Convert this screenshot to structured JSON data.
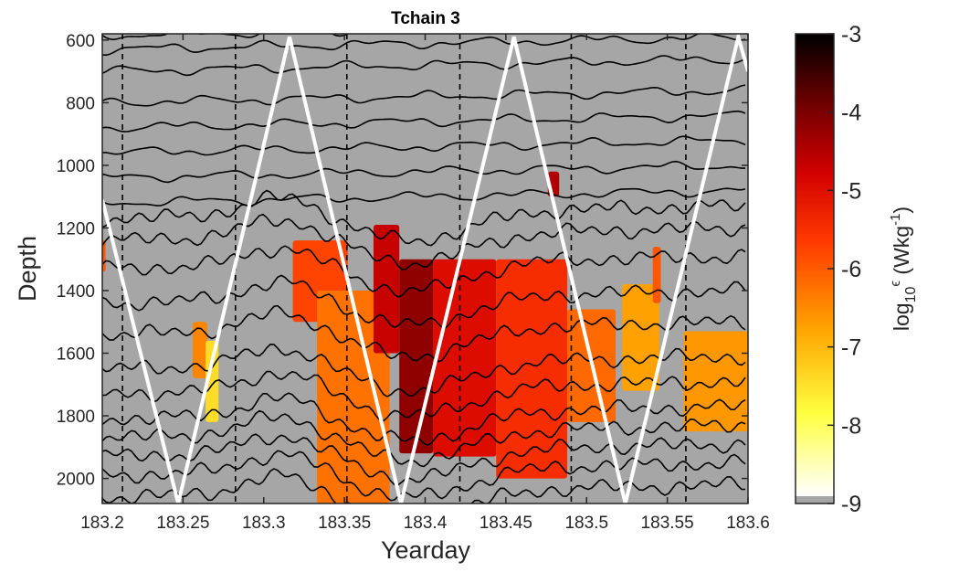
{
  "chart_data": {
    "type": "heatmap",
    "title": "Tchain 3",
    "xlabel": "Yearday",
    "ylabel": "Depth",
    "xlim": [
      183.2,
      183.6
    ],
    "ylim": [
      2080,
      580
    ],
    "y_reversed": true,
    "x_ticks": [
      "183.2",
      "183.25",
      "183.3",
      "183.35",
      "183.4",
      "183.45",
      "183.5",
      "183.55",
      "183.6"
    ],
    "y_ticks": [
      "600",
      "800",
      "1000",
      "1200",
      "1400",
      "1600",
      "1800",
      "2000"
    ],
    "colorbar": {
      "label_base": "log",
      "label_sub": "10",
      "label_sup_eps": "ϵ",
      "label_units": " (Wkg",
      "label_units_sup": "-1",
      "label_close": ")",
      "range": [
        -9,
        -3
      ],
      "ticks": [
        "-3",
        "-4",
        "-5",
        "-6",
        "-7",
        "-8",
        "-9"
      ],
      "colormap": "hot (reversed)"
    },
    "background_color": "#a6a6a6",
    "dashed_vertical_lines_x": [
      183.2125,
      183.2825,
      183.3515,
      183.4215,
      183.4905,
      183.5615
    ],
    "profiler_track": {
      "color": "#ffffff",
      "x": [
        183.2,
        183.247,
        183.316,
        183.385,
        183.455,
        183.524,
        183.594,
        183.6
      ],
      "depth": [
        1110,
        2080,
        590,
        2080,
        590,
        2080,
        590,
        700
      ]
    },
    "isotherm_base_depths": [
      585,
      630,
      700,
      800,
      880,
      960,
      1040,
      1120,
      1170,
      1240,
      1330,
      1440,
      1540,
      1650,
      1730,
      1810,
      1870,
      1930,
      1990,
      2060
    ],
    "dissipation_patches": [
      {
        "x": [
          183.2,
          183.202
        ],
        "depth": [
          1240,
          1340
        ],
        "log_eps": -6.0
      },
      {
        "x": [
          183.256,
          183.265
        ],
        "depth": [
          1500,
          1680
        ],
        "log_eps": -6.5
      },
      {
        "x": [
          183.264,
          183.272
        ],
        "depth": [
          1560,
          1820
        ],
        "log_eps": -7.5
      },
      {
        "x": [
          183.318,
          183.352
        ],
        "depth": [
          1240,
          1500
        ],
        "log_eps": -5.8
      },
      {
        "x": [
          183.333,
          183.378
        ],
        "depth": [
          1400,
          2080
        ],
        "log_eps": -6.3
      },
      {
        "x": [
          183.368,
          183.384
        ],
        "depth": [
          1190,
          1600
        ],
        "log_eps": -4.7
      },
      {
        "x": [
          183.384,
          183.405
        ],
        "depth": [
          1300,
          1920
        ],
        "log_eps": -4.2
      },
      {
        "x": [
          183.405,
          183.444
        ],
        "depth": [
          1300,
          1930
        ],
        "log_eps": -5.0
      },
      {
        "x": [
          183.444,
          183.488
        ],
        "depth": [
          1300,
          2000
        ],
        "log_eps": -5.5
      },
      {
        "x": [
          183.476,
          183.483
        ],
        "depth": [
          1020,
          1100
        ],
        "log_eps": -4.5
      },
      {
        "x": [
          183.488,
          183.518
        ],
        "depth": [
          1460,
          1820
        ],
        "log_eps": -6.2
      },
      {
        "x": [
          183.522,
          183.545
        ],
        "depth": [
          1380,
          1720
        ],
        "log_eps": -6.8
      },
      {
        "x": [
          183.541,
          183.546
        ],
        "depth": [
          1260,
          1440
        ],
        "log_eps": -6.0
      },
      {
        "x": [
          183.56,
          183.6
        ],
        "depth": [
          1530,
          1850
        ],
        "log_eps": -6.7
      }
    ]
  }
}
